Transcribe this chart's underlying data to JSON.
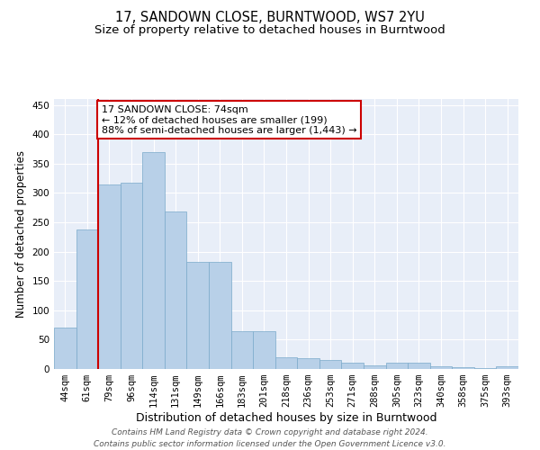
{
  "title": "17, SANDOWN CLOSE, BURNTWOOD, WS7 2YU",
  "subtitle": "Size of property relative to detached houses in Burntwood",
  "xlabel": "Distribution of detached houses by size in Burntwood",
  "ylabel": "Number of detached properties",
  "categories": [
    "44sqm",
    "61sqm",
    "79sqm",
    "96sqm",
    "114sqm",
    "131sqm",
    "149sqm",
    "166sqm",
    "183sqm",
    "201sqm",
    "218sqm",
    "236sqm",
    "253sqm",
    "271sqm",
    "288sqm",
    "305sqm",
    "323sqm",
    "340sqm",
    "358sqm",
    "375sqm",
    "393sqm"
  ],
  "values": [
    70,
    237,
    315,
    317,
    370,
    268,
    183,
    183,
    65,
    65,
    20,
    18,
    16,
    10,
    6,
    10,
    10,
    4,
    3,
    2,
    4
  ],
  "bar_color": "#b8d0e8",
  "bar_edge_color": "#7aaaca",
  "property_line_x": 1.5,
  "annotation_text": "17 SANDOWN CLOSE: 74sqm\n← 12% of detached houses are smaller (199)\n88% of semi-detached houses are larger (1,443) →",
  "annotation_box_color": "#ffffff",
  "annotation_box_edge_color": "#cc0000",
  "vline_color": "#cc0000",
  "background_color": "#e8eef8",
  "grid_color": "#ffffff",
  "ylim": [
    0,
    460
  ],
  "yticks": [
    0,
    50,
    100,
    150,
    200,
    250,
    300,
    350,
    400,
    450
  ],
  "footer": "Contains HM Land Registry data © Crown copyright and database right 2024.\nContains public sector information licensed under the Open Government Licence v3.0.",
  "title_fontsize": 10.5,
  "subtitle_fontsize": 9.5,
  "xlabel_fontsize": 9,
  "ylabel_fontsize": 8.5,
  "tick_fontsize": 7.5,
  "footer_fontsize": 6.5,
  "ann_fontsize": 8
}
